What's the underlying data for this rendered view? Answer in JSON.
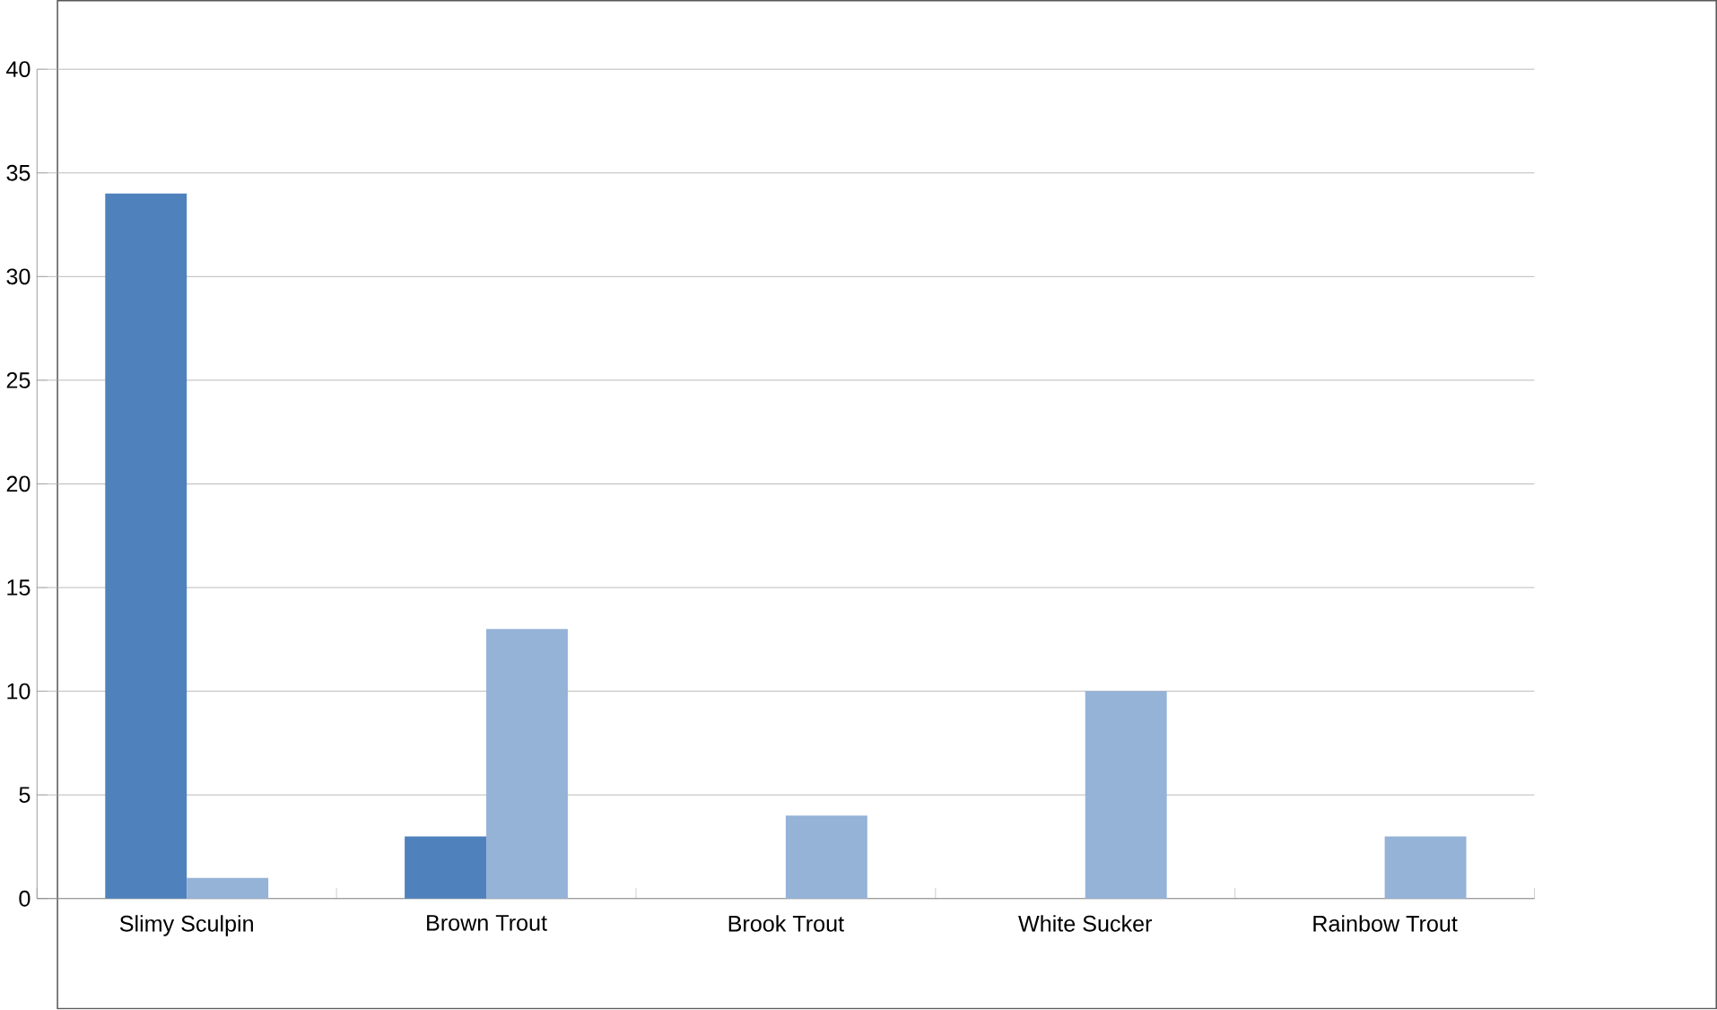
{
  "chart_data": {
    "type": "bar",
    "categories": [
      "Slimy Sculpin",
      "Brown Trout",
      "Brook Trout",
      "White Sucker",
      "Rainbow Trout"
    ],
    "series": [
      {
        "color": "#4f81bd",
        "values": [
          34,
          3,
          0,
          0,
          0
        ]
      },
      {
        "color": "#95b3d7",
        "values": [
          1,
          13,
          4,
          10,
          3
        ]
      }
    ],
    "ylim": [
      0,
      40
    ],
    "yticks": [
      0,
      5,
      10,
      15,
      20,
      25,
      30,
      35,
      40
    ],
    "grid": "y"
  }
}
